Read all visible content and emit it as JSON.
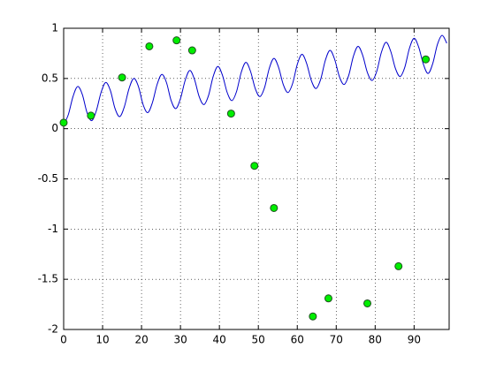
{
  "chart_data": {
    "type": "line",
    "xlim": [
      0,
      99
    ],
    "ylim": [
      -2,
      1
    ],
    "xticks": [
      0,
      10,
      20,
      30,
      40,
      50,
      60,
      70,
      80,
      90
    ],
    "yticks": [
      -2,
      -1.5,
      -1,
      -0.5,
      0,
      0.5,
      1
    ],
    "grid": true,
    "series": [
      {
        "type": "line",
        "color": "#0000cc",
        "x": [
          0,
          1.2,
          2.4,
          3.6,
          4.8,
          6,
          7.2,
          8.4,
          9.6,
          10.8,
          12,
          13.2,
          14.4,
          15.6,
          16.8,
          18,
          19.2,
          20.4,
          21.6,
          22.8,
          24,
          25.2,
          26.4,
          27.6,
          28.8,
          30,
          31.2,
          32.4,
          33.6,
          34.8,
          36,
          37.2,
          38.4,
          39.6,
          40.8,
          42,
          43.2,
          44.4,
          45.6,
          46.8,
          48,
          49.2,
          50.4,
          51.6,
          52.8,
          54,
          55.2,
          56.4,
          57.6,
          58.8,
          60,
          61.2,
          62.4,
          63.6,
          64.8,
          66,
          67.2,
          68.4,
          69.6,
          70.8,
          72,
          73.2,
          74.4,
          75.6,
          76.8,
          78,
          79.2,
          80.4,
          81.6,
          82.8,
          84,
          85.2,
          86.4,
          87.6,
          88.8,
          90,
          91.2,
          92.4,
          93.6,
          94.8,
          96,
          97.2,
          98.4
        ],
        "values": [
          0.04,
          0.14,
          0.32,
          0.42,
          0.34,
          0.16,
          0.08,
          0.18,
          0.36,
          0.46,
          0.38,
          0.2,
          0.12,
          0.22,
          0.4,
          0.5,
          0.42,
          0.24,
          0.16,
          0.26,
          0.44,
          0.54,
          0.46,
          0.28,
          0.2,
          0.3,
          0.48,
          0.58,
          0.49,
          0.32,
          0.24,
          0.33,
          0.52,
          0.62,
          0.53,
          0.36,
          0.28,
          0.37,
          0.56,
          0.66,
          0.57,
          0.4,
          0.32,
          0.41,
          0.6,
          0.7,
          0.61,
          0.44,
          0.36,
          0.45,
          0.64,
          0.74,
          0.65,
          0.48,
          0.4,
          0.49,
          0.68,
          0.78,
          0.69,
          0.52,
          0.44,
          0.53,
          0.72,
          0.82,
          0.73,
          0.56,
          0.48,
          0.57,
          0.76,
          0.86,
          0.77,
          0.6,
          0.52,
          0.61,
          0.8,
          0.9,
          0.81,
          0.64,
          0.55,
          0.65,
          0.84,
          0.93,
          0.85
        ]
      },
      {
        "type": "scatter",
        "color": "#00ee00",
        "x": [
          0,
          7,
          15,
          22,
          29,
          33,
          43,
          49,
          54,
          64,
          68,
          78,
          86,
          93
        ],
        "values": [
          0.06,
          0.13,
          0.51,
          0.82,
          0.88,
          0.78,
          0.15,
          -0.37,
          -0.79,
          -1.87,
          -1.69,
          -1.74,
          -1.37,
          0.69
        ]
      }
    ]
  }
}
